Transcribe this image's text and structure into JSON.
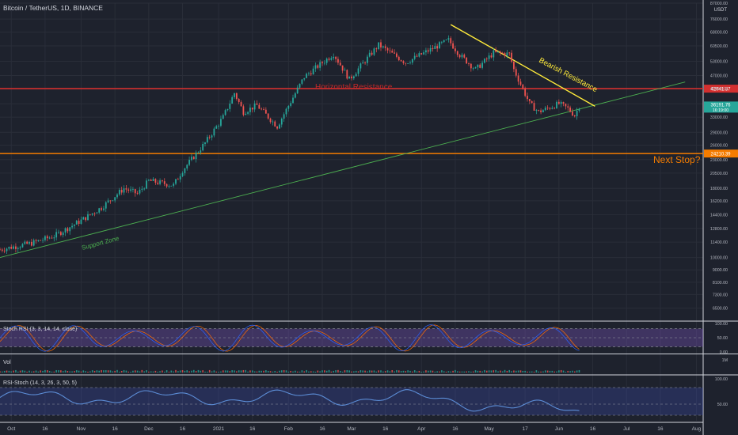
{
  "header": {
    "title": "Bitcoin / TetherUS, 1D, BINANCE",
    "currency": "USDT"
  },
  "annotations": {
    "horizontal_resistance": "Horizontal Resistance",
    "bearish_resistance": "Bearish Resistance",
    "support_zone": "Support Zone",
    "next_stop": "Next Stop?"
  },
  "colors": {
    "background": "#1e222d",
    "grid": "#2a2e39",
    "up": "#26a69a",
    "down": "#ef5350",
    "resistance": "#d32f2f",
    "next_stop": "#f57c00",
    "trend_support": "#4caf50",
    "trend_bearish": "#ffeb3b",
    "stoch_k": "#2962ff",
    "stoch_d": "#ff6d00",
    "stoch_band": "#7e57c2",
    "rsi_band": "#3f51b5"
  },
  "chart_data": {
    "type": "candlestick",
    "symbol": "BTCUSDT",
    "timeframe": "1D",
    "y_scale": "log",
    "ylim": [
      5900,
      87000
    ],
    "price_ticks": [
      "87000.00",
      "76000.00",
      "68000.00",
      "60500.00",
      "53000.00",
      "47000.00",
      "42000.00",
      "37000.00",
      "33000.00",
      "29000.00",
      "26000.00",
      "23000.00",
      "20500.00",
      "18000.00",
      "16200.00",
      "14400.00",
      "12800.00",
      "11400.00",
      "10000.00",
      "9000.00",
      "8100.00",
      "7300.00",
      "6500.00"
    ],
    "x_ticks": [
      {
        "label": "Oct",
        "date": "2020-10-01"
      },
      {
        "label": "16",
        "date": "2020-10-16"
      },
      {
        "label": "Nov",
        "date": "2020-11-01"
      },
      {
        "label": "16",
        "date": "2020-11-16"
      },
      {
        "label": "Dec",
        "date": "2020-12-01"
      },
      {
        "label": "16",
        "date": "2020-12-16"
      },
      {
        "label": "2021",
        "date": "2021-01-01"
      },
      {
        "label": "16",
        "date": "2021-01-16"
      },
      {
        "label": "Feb",
        "date": "2021-02-01"
      },
      {
        "label": "16",
        "date": "2021-02-16"
      },
      {
        "label": "Mar",
        "date": "2021-03-01"
      },
      {
        "label": "16",
        "date": "2021-03-16"
      },
      {
        "label": "Apr",
        "date": "2021-04-01"
      },
      {
        "label": "16",
        "date": "2021-04-16"
      },
      {
        "label": "May",
        "date": "2021-05-01"
      },
      {
        "label": "17",
        "date": "2021-05-17"
      },
      {
        "label": "Jun",
        "date": "2021-06-01"
      },
      {
        "label": "16",
        "date": "2021-06-16"
      },
      {
        "label": "Jul",
        "date": "2021-07-01"
      },
      {
        "label": "16",
        "date": "2021-07-16"
      },
      {
        "label": "Aug",
        "date": "2021-08-01"
      }
    ],
    "close_path": [
      [
        "2020-09-26",
        10700
      ],
      [
        "2020-10-10",
        11300
      ],
      [
        "2020-10-20",
        12000
      ],
      [
        "2020-11-01",
        13700
      ],
      [
        "2020-11-10",
        15300
      ],
      [
        "2020-11-20",
        18000
      ],
      [
        "2020-11-26",
        17200
      ],
      [
        "2020-12-01",
        19200
      ],
      [
        "2020-12-12",
        18500
      ],
      [
        "2020-12-16",
        21000
      ],
      [
        "2020-12-26",
        26500
      ],
      [
        "2021-01-03",
        33000
      ],
      [
        "2021-01-08",
        40500
      ],
      [
        "2021-01-12",
        34500
      ],
      [
        "2021-01-18",
        36500
      ],
      [
        "2021-01-27",
        30500
      ],
      [
        "2021-02-08",
        46500
      ],
      [
        "2021-02-21",
        56500
      ],
      [
        "2021-02-28",
        45500
      ],
      [
        "2021-03-13",
        61000
      ],
      [
        "2021-03-25",
        52500
      ],
      [
        "2021-04-13",
        63500
      ],
      [
        "2021-04-18",
        56000
      ],
      [
        "2021-04-25",
        49500
      ],
      [
        "2021-05-03",
        57000
      ],
      [
        "2021-05-10",
        56500
      ],
      [
        "2021-05-12",
        49500
      ],
      [
        "2021-05-19",
        37000
      ],
      [
        "2021-05-23",
        34500
      ],
      [
        "2021-06-01",
        37000
      ],
      [
        "2021-06-05",
        35500
      ],
      [
        "2021-06-08",
        33500
      ],
      [
        "2021-06-10",
        36200
      ]
    ],
    "levels": [
      {
        "name": "Horizontal Resistance",
        "price": 42041.37,
        "label": "42041.37"
      },
      {
        "name": "Next Stop",
        "price": 24210.39,
        "label": "24210.39"
      }
    ],
    "last_price": {
      "label": "36191.76",
      "countdown": "16:19:00",
      "price": 36191.76
    },
    "trendlines": [
      {
        "name": "Support Zone",
        "from": {
          "date": "2020-09-26",
          "price": 10000
        },
        "to": {
          "date": "2021-07-27",
          "price": 44500
        }
      },
      {
        "name": "Bearish Resistance",
        "from": {
          "date": "2021-04-14",
          "price": 72500
        },
        "to": {
          "date": "2021-06-17",
          "price": 36200
        }
      }
    ],
    "stoch_rsi": {
      "title": "Stoch RSI (3, 3, 14, 14, close)",
      "ylim": [
        0,
        100
      ],
      "ticks": [
        "100.00",
        "50.00",
        "0.00"
      ],
      "band": [
        20,
        80
      ],
      "last_k": 62
    },
    "volume": {
      "title": "Vol",
      "tick": "1M"
    },
    "rsi_stoch": {
      "title": "RSI-Stoch (14, 3, 26, 3, 50, 5)",
      "ylim": [
        20,
        100
      ],
      "ticks": [
        "100.00",
        "50.00"
      ],
      "band": [
        30,
        80
      ],
      "last": 35
    }
  }
}
